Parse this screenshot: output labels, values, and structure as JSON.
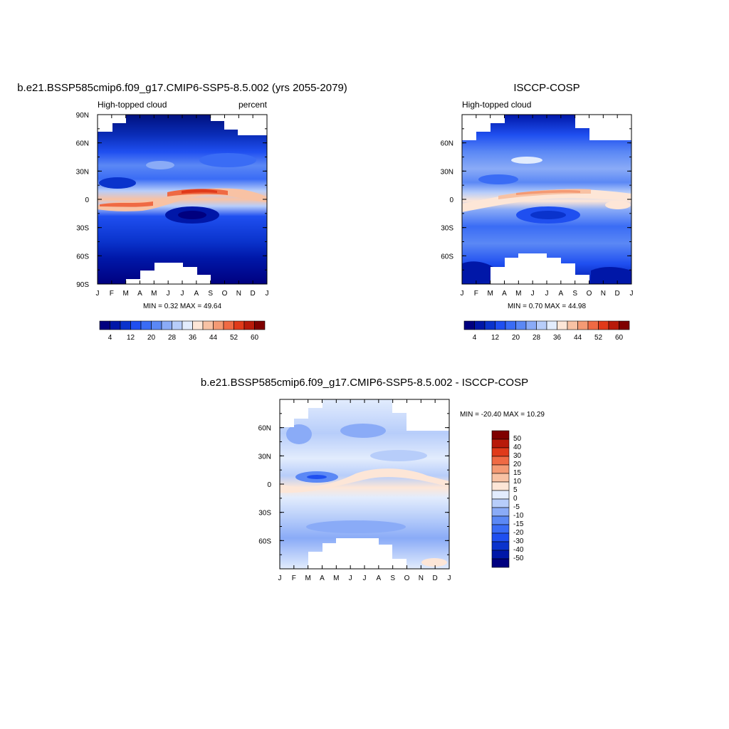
{
  "chart_data": [
    {
      "type": "heatmap",
      "title": "b.e21.BSSP585cmip6.f09_g17.CMIP6-SSP5-8.5.002 (yrs 2055-2079)",
      "subtitle_left": "High-topped cloud",
      "subtitle_right": "percent",
      "x_ticks": [
        "J",
        "F",
        "M",
        "A",
        "M",
        "J",
        "J",
        "A",
        "S",
        "O",
        "N",
        "D",
        "J"
      ],
      "y_ticks": [
        "90N",
        "60N",
        "30N",
        "0",
        "30S",
        "60S",
        "90S"
      ],
      "ylim": [
        -90,
        90
      ],
      "stats_text": "MIN =   0.32 MAX =  49.64",
      "min": 0.32,
      "max": 49.64,
      "colorbar": {
        "orientation": "horizontal",
        "levels": [
          4,
          8,
          12,
          16,
          20,
          24,
          28,
          32,
          36,
          40,
          44,
          48,
          52,
          56,
          60
        ],
        "labels": [
          "4",
          "12",
          "20",
          "28",
          "36",
          "44",
          "52",
          "60"
        ]
      }
    },
    {
      "type": "heatmap",
      "title": "ISCCP-COSP",
      "subtitle_left": "High-topped cloud",
      "x_ticks": [
        "J",
        "F",
        "M",
        "A",
        "M",
        "J",
        "J",
        "A",
        "S",
        "O",
        "N",
        "D",
        "J"
      ],
      "y_ticks": [
        "60N",
        "30N",
        "0",
        "30S",
        "60S"
      ],
      "ylim": [
        -90,
        90
      ],
      "stats_text": "MIN =   0.70 MAX =  44.98",
      "min": 0.7,
      "max": 44.98,
      "colorbar": {
        "orientation": "horizontal",
        "levels": [
          4,
          8,
          12,
          16,
          20,
          24,
          28,
          32,
          36,
          40,
          44,
          48,
          52,
          56,
          60
        ],
        "labels": [
          "4",
          "12",
          "20",
          "28",
          "36",
          "44",
          "52",
          "60"
        ]
      }
    },
    {
      "type": "heatmap",
      "title": "b.e21.BSSP585cmip6.f09_g17.CMIP6-SSP5-8.5.002 - ISCCP-COSP",
      "x_ticks": [
        "J",
        "F",
        "M",
        "A",
        "M",
        "J",
        "J",
        "A",
        "S",
        "O",
        "N",
        "D",
        "J"
      ],
      "y_ticks": [
        "60N",
        "30N",
        "0",
        "30S",
        "60S"
      ],
      "ylim": [
        -90,
        90
      ],
      "stats_text": "MIN = -20.40 MAX =  10.29",
      "min": -20.4,
      "max": 10.29,
      "colorbar": {
        "orientation": "vertical",
        "levels": [
          -50,
          -40,
          -30,
          -20,
          -15,
          -10,
          -5,
          0,
          5,
          10,
          15,
          20,
          30,
          40,
          50
        ],
        "labels": [
          "50",
          "40",
          "30",
          "20",
          "15",
          "10",
          "5",
          "0",
          "-5",
          "-10",
          "-15",
          "-20",
          "-30",
          "-40",
          "-50"
        ]
      }
    }
  ],
  "colors": {
    "ramp16": [
      "#00007f",
      "#0017a8",
      "#0a33cc",
      "#1f4ff0",
      "#3a6cf5",
      "#5b88f5",
      "#8aabf7",
      "#b7cdfa",
      "#e2ecfd",
      "#fde6d7",
      "#f8c2a4",
      "#f49a74",
      "#ef6a44",
      "#e03a1a",
      "#b81a0a",
      "#7f0000"
    ]
  }
}
